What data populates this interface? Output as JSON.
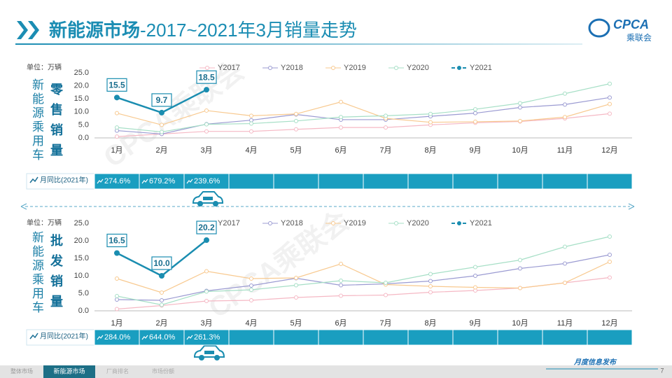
{
  "header": {
    "title_main": "新能源市场",
    "title_rest": "-2017~2021年3月销量走势",
    "logo": "CPCA",
    "logo_cn": "乘联会"
  },
  "chart_data": [
    {
      "type": "line",
      "side_title": "新能源乘用车",
      "title": "零售销量",
      "unit": "单位：万辆",
      "watermark": "CPCA乘联会",
      "categories": [
        "1月",
        "2月",
        "3月",
        "4月",
        "5月",
        "6月",
        "7月",
        "8月",
        "9月",
        "10月",
        "11月",
        "12月"
      ],
      "ylim": [
        0,
        25
      ],
      "yticks": [
        {
          "value": 0,
          "label": "0.0"
        },
        {
          "value": 5,
          "label": "5.0"
        },
        {
          "value": 10,
          "label": "10.0"
        },
        {
          "value": 15,
          "label": "15.0"
        },
        {
          "value": 20,
          "label": "20.0"
        },
        {
          "value": 25,
          "label": "25.0"
        }
      ],
      "series": [
        {
          "name": "Y2017",
          "color": "#f5b8c4",
          "values": [
            0.5,
            1.5,
            2.5,
            2.5,
            3.3,
            4.0,
            4.0,
            5.0,
            5.8,
            6.3,
            7.5,
            9.3
          ]
        },
        {
          "name": "Y2018",
          "color": "#9b9bd2",
          "values": [
            2.8,
            1.5,
            5.3,
            6.8,
            9.0,
            7.0,
            7.0,
            8.3,
            9.5,
            11.7,
            12.8,
            15.5
          ]
        },
        {
          "name": "Y2019",
          "color": "#f8c98f",
          "values": [
            9.5,
            5.0,
            10.5,
            8.5,
            9.2,
            13.8,
            7.5,
            6.0,
            6.2,
            6.5,
            8.0,
            13.0
          ]
        },
        {
          "name": "Y2020",
          "color": "#a6dfc6",
          "values": [
            4.0,
            2.3,
            5.2,
            5.5,
            6.5,
            8.0,
            8.5,
            9.2,
            11.0,
            13.3,
            17.0,
            20.8
          ]
        },
        {
          "name": "Y2021",
          "color": "#1a8db0",
          "values": [
            15.5,
            9.7,
            18.5,
            null,
            null,
            null,
            null,
            null,
            null,
            null,
            null,
            null
          ]
        }
      ],
      "yoy": {
        "label": "月同比(2021年)",
        "values": [
          274.6,
          679.2,
          239.6,
          null,
          null,
          null,
          null,
          null,
          null,
          null,
          null,
          null
        ],
        "value_labels": [
          "274.6%",
          "679.2%",
          "239.6%",
          null,
          null,
          null,
          null,
          null,
          null,
          null,
          null,
          null
        ]
      }
    },
    {
      "type": "line",
      "side_title": "新能源乘用车",
      "title": "批发销量",
      "unit": "单位：万辆",
      "watermark": "CPCA乘联会",
      "categories": [
        "1月",
        "2月",
        "3月",
        "4月",
        "5月",
        "6月",
        "7月",
        "8月",
        "9月",
        "10月",
        "11月",
        "12月"
      ],
      "ylim": [
        0,
        25
      ],
      "yticks": [
        {
          "value": 0,
          "label": "0.0"
        },
        {
          "value": 5,
          "label": "5.0"
        },
        {
          "value": 10,
          "label": "10.0"
        },
        {
          "value": 15,
          "label": "15.0"
        },
        {
          "value": 20,
          "label": "20.0"
        },
        {
          "value": 25,
          "label": "25.0"
        }
      ],
      "series": [
        {
          "name": "Y2017",
          "color": "#f5b8c4",
          "values": [
            0.5,
            1.5,
            2.8,
            3.0,
            3.8,
            4.3,
            4.5,
            5.3,
            5.8,
            6.5,
            8.0,
            9.5
          ]
        },
        {
          "name": "Y2018",
          "color": "#9b9bd2",
          "values": [
            3.2,
            3.0,
            5.7,
            7.2,
            9.3,
            7.3,
            7.7,
            8.5,
            10.0,
            12.1,
            13.5,
            16.0
          ]
        },
        {
          "name": "Y2019",
          "color": "#f8c98f",
          "values": [
            9.2,
            5.2,
            11.3,
            9.2,
            9.4,
            13.4,
            7.5,
            7.0,
            6.7,
            6.5,
            8.0,
            14.0
          ]
        },
        {
          "name": "Y2020",
          "color": "#a6dfc6",
          "values": [
            4.2,
            1.7,
            5.5,
            6.0,
            7.3,
            8.6,
            8.0,
            10.5,
            12.5,
            14.5,
            18.3,
            21.2
          ]
        },
        {
          "name": "Y2021",
          "color": "#1a8db0",
          "values": [
            16.5,
            10.0,
            20.2,
            null,
            null,
            null,
            null,
            null,
            null,
            null,
            null,
            null
          ],
          "value_labels": [
            "16.5",
            "10.0",
            "20.2",
            null,
            null,
            null,
            null,
            null,
            null,
            null,
            null,
            null
          ]
        }
      ],
      "yoy": {
        "label": "月同比(2021年)",
        "values": [
          284.0,
          644.0,
          261.3,
          null,
          null,
          null,
          null,
          null,
          null,
          null,
          null,
          null
        ],
        "value_labels": [
          "284.0%",
          "644.0%",
          "261.3%",
          null,
          null,
          null,
          null,
          null,
          null,
          null,
          null,
          null
        ]
      }
    }
  ],
  "footer": {
    "tabs": [
      "整体市场",
      "新能源市场",
      "厂商排名",
      "市场份额"
    ],
    "note": "月度信息发布",
    "page": "7"
  }
}
